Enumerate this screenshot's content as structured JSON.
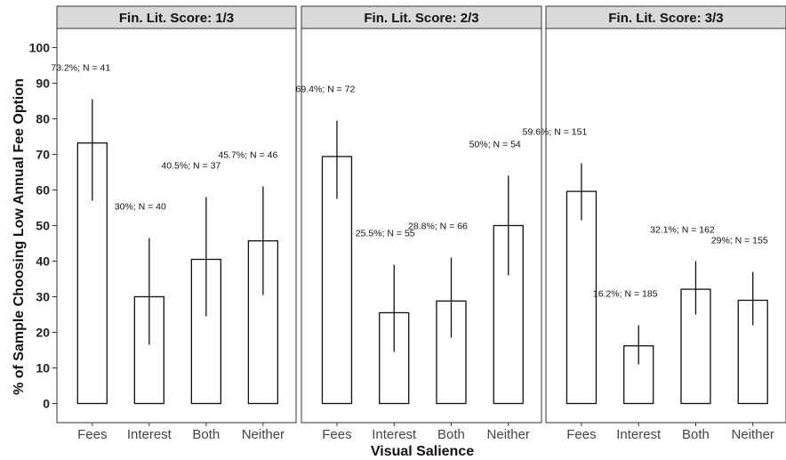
{
  "chart_data": {
    "type": "bar",
    "xlabel": "Visual Salience",
    "ylabel": "% of Sample Choosing Low Annual Fee Option",
    "ylim": [
      0,
      100
    ],
    "yticks": [
      0,
      10,
      20,
      30,
      40,
      50,
      60,
      70,
      80,
      90,
      100
    ],
    "grid": false,
    "categories": [
      "Fees",
      "Interest",
      "Both",
      "Neither"
    ],
    "panels": [
      {
        "title": "Fin. Lit. Score: 1/3",
        "values": [
          73.2,
          30,
          40.5,
          45.7
        ],
        "error_low": [
          57,
          16.5,
          24.5,
          30.5
        ],
        "error_high": [
          85.5,
          46.5,
          58,
          61
        ],
        "labels": [
          "73.2%; N = 41",
          "30%; N = 40",
          "40.5%; N = 37",
          "45.7%; N = 46"
        ]
      },
      {
        "title": "Fin. Lit. Score: 2/3",
        "values": [
          69.4,
          25.5,
          28.8,
          50
        ],
        "error_low": [
          57.5,
          14.5,
          18.5,
          36
        ],
        "error_high": [
          79.5,
          39,
          41,
          64
        ],
        "labels": [
          "69.4%; N = 72",
          "25.5%; N = 55",
          "28.8%; N = 66",
          "50%; N = 54"
        ]
      },
      {
        "title": "Fin. Lit. Score: 3/3",
        "values": [
          59.6,
          16.2,
          32.1,
          29
        ],
        "error_low": [
          51.5,
          11,
          25,
          22
        ],
        "error_high": [
          67.5,
          22,
          40,
          37
        ],
        "labels": [
          "59.6%; N = 151",
          "16.2%; N = 185",
          "32.1%; N = 162",
          "29%; N = 155"
        ]
      }
    ]
  }
}
